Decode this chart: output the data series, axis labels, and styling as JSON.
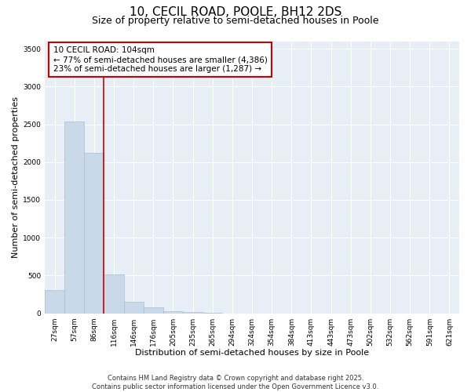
{
  "title_line1": "10, CECIL ROAD, POOLE, BH12 2DS",
  "title_line2": "Size of property relative to semi-detached houses in Poole",
  "xlabel": "Distribution of semi-detached houses by size in Poole",
  "ylabel": "Number of semi-detached properties",
  "categories": [
    "27sqm",
    "57sqm",
    "86sqm",
    "116sqm",
    "146sqm",
    "176sqm",
    "205sqm",
    "235sqm",
    "265sqm",
    "294sqm",
    "324sqm",
    "354sqm",
    "384sqm",
    "413sqm",
    "443sqm",
    "473sqm",
    "502sqm",
    "532sqm",
    "562sqm",
    "591sqm",
    "621sqm"
  ],
  "values": [
    305,
    2540,
    2120,
    510,
    155,
    80,
    30,
    15,
    2,
    0,
    0,
    0,
    0,
    0,
    0,
    0,
    0,
    0,
    0,
    0,
    0
  ],
  "bar_color": "#c9d9ea",
  "bar_edge_color": "#aabfcf",
  "property_line_x": 2.5,
  "property_line_color": "#cc0000",
  "annotation_text": "10 CECIL ROAD: 104sqm\n← 77% of semi-detached houses are smaller (4,386)\n23% of semi-detached houses are larger (1,287) →",
  "annotation_box_color": "white",
  "annotation_box_edge": "#cc0000",
  "ylim": [
    0,
    3600
  ],
  "yticks": [
    0,
    500,
    1000,
    1500,
    2000,
    2500,
    3000,
    3500
  ],
  "background_color": "#e8eef5",
  "grid_color": "#ffffff",
  "footer_line1": "Contains HM Land Registry data © Crown copyright and database right 2025.",
  "footer_line2": "Contains public sector information licensed under the Open Government Licence v3.0.",
  "title_fontsize": 11,
  "subtitle_fontsize": 9,
  "axis_label_fontsize": 8,
  "tick_fontsize": 6.5,
  "annotation_fontsize": 7.5,
  "footer_fontsize": 6
}
